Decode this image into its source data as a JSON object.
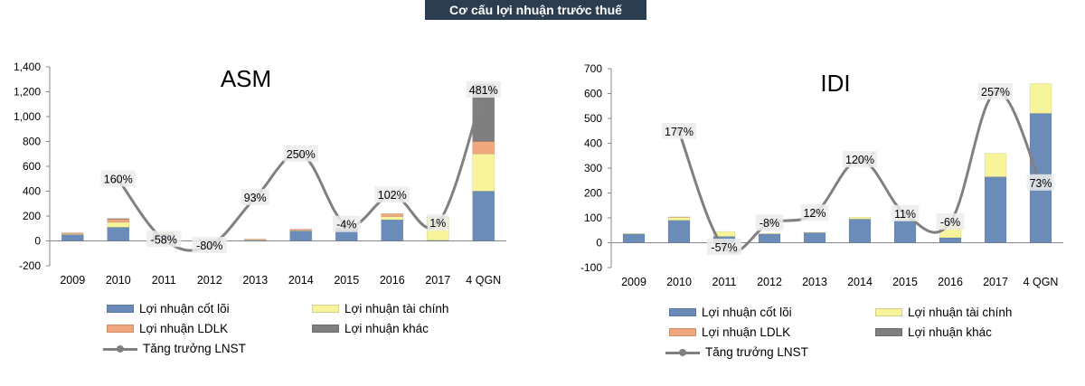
{
  "banner": {
    "title": "Cơ cấu lợi nhuận trước thuế"
  },
  "legend_labels": {
    "core": "Lợi nhuận cốt lõi",
    "fin": "Lợi nhuận tài chính",
    "jv": "Lợi nhuận LDLK",
    "other": "Lợi nhuận khác",
    "growth": "Tăng trưởng LNST"
  },
  "colors": {
    "core": "#6b8cb9",
    "fin": "#f7f49c",
    "jv": "#f1a77e",
    "other": "#7f7f7f",
    "growth": "#808080"
  },
  "chart_data": [
    {
      "type": "bar",
      "stacked": true,
      "title": "ASM",
      "categories": [
        "2009",
        "2010",
        "2011",
        "2012",
        "2013",
        "2014",
        "2015",
        "2016",
        "2017",
        "4 QGN"
      ],
      "ylim": [
        -200,
        1400
      ],
      "yticks": [
        -200,
        0,
        200,
        400,
        600,
        800,
        1000,
        1200,
        1400
      ],
      "ytick_labels": [
        "-200",
        "0",
        "200",
        "400",
        "600",
        "800",
        "1,000",
        "1,200",
        "1,400"
      ],
      "series": [
        {
          "name": "Lợi nhuận cốt lõi",
          "values": [
            50,
            110,
            55,
            5,
            5,
            80,
            95,
            170,
            5,
            400
          ]
        },
        {
          "name": "Lợi nhuận tài chính",
          "values": [
            5,
            40,
            8,
            3,
            5,
            5,
            5,
            25,
            185,
            300
          ]
        },
        {
          "name": "Lợi nhuận LDLK",
          "values": [
            10,
            25,
            2,
            2,
            5,
            10,
            5,
            25,
            5,
            100
          ]
        },
        {
          "name": "Lợi nhuận khác",
          "values": [
            0,
            5,
            0,
            0,
            0,
            0,
            0,
            0,
            0,
            460
          ]
        }
      ],
      "growth": {
        "name": "Tăng trưởng LNST",
        "labels": [
          "",
          "160%",
          "-58%",
          "-80%",
          "93%",
          "250%",
          "-4%",
          "102%",
          "1%",
          "481%"
        ],
        "values": [
          null,
          160,
          -58,
          -80,
          93,
          250,
          -4,
          102,
          1,
          481
        ]
      }
    },
    {
      "type": "bar",
      "stacked": true,
      "title": "IDI",
      "categories": [
        "2009",
        "2010",
        "2011",
        "2012",
        "2013",
        "2014",
        "2015",
        "2016",
        "2017",
        "4 QGN"
      ],
      "ylim": [
        -100,
        700
      ],
      "yticks": [
        -100,
        0,
        100,
        200,
        300,
        400,
        500,
        600,
        700
      ],
      "ytick_labels": [
        "-100",
        "0",
        "100",
        "200",
        "300",
        "400",
        "500",
        "600",
        "700"
      ],
      "series": [
        {
          "name": "Lợi nhuận cốt lõi",
          "values": [
            35,
            90,
            25,
            35,
            40,
            95,
            90,
            20,
            265,
            520
          ]
        },
        {
          "name": "Lợi nhuận tài chính",
          "values": [
            2,
            12,
            20,
            2,
            2,
            8,
            5,
            60,
            95,
            120
          ]
        },
        {
          "name": "Lợi nhuận LDLK",
          "values": [
            0,
            2,
            0,
            0,
            0,
            0,
            0,
            0,
            0,
            0
          ]
        },
        {
          "name": "Lợi nhuận khác",
          "values": [
            0,
            0,
            0,
            0,
            0,
            0,
            0,
            0,
            0,
            0
          ]
        }
      ],
      "growth": {
        "name": "Tăng trưởng LNST",
        "labels": [
          "",
          "177%",
          "-57%",
          "-8%",
          "12%",
          "120%",
          "11%",
          "-6%",
          "257%",
          "73%"
        ],
        "values": [
          null,
          177,
          -57,
          -8,
          12,
          120,
          11,
          -6,
          257,
          73
        ]
      }
    }
  ]
}
